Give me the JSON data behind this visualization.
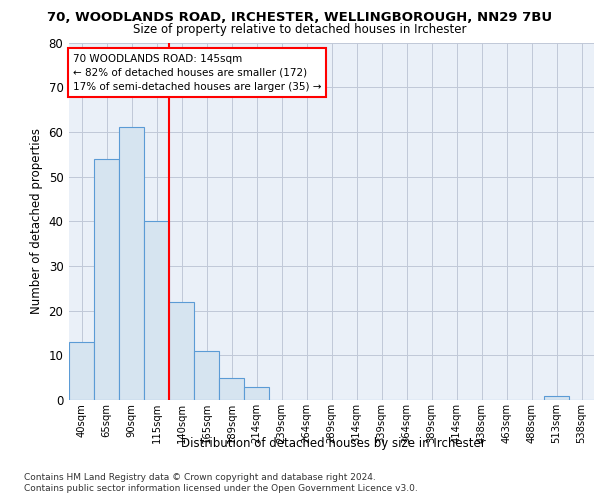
{
  "title1": "70, WOODLANDS ROAD, IRCHESTER, WELLINGBOROUGH, NN29 7BU",
  "title2": "Size of property relative to detached houses in Irchester",
  "xlabel": "Distribution of detached houses by size in Irchester",
  "ylabel": "Number of detached properties",
  "bin_labels": [
    "40sqm",
    "65sqm",
    "90sqm",
    "115sqm",
    "140sqm",
    "165sqm",
    "189sqm",
    "214sqm",
    "239sqm",
    "264sqm",
    "289sqm",
    "314sqm",
    "339sqm",
    "364sqm",
    "389sqm",
    "414sqm",
    "438sqm",
    "463sqm",
    "488sqm",
    "513sqm",
    "538sqm"
  ],
  "bar_values": [
    13,
    54,
    61,
    40,
    22,
    11,
    5,
    3,
    0,
    0,
    0,
    0,
    0,
    0,
    0,
    0,
    0,
    0,
    0,
    1,
    0
  ],
  "bar_color": "#d6e4f0",
  "bar_edge_color": "#5b9bd5",
  "vline_x": 4,
  "annotation_text": "70 WOODLANDS ROAD: 145sqm\n← 82% of detached houses are smaller (172)\n17% of semi-detached houses are larger (35) →",
  "annotation_box_color": "white",
  "annotation_box_edgecolor": "red",
  "vline_color": "red",
  "ylim": [
    0,
    80
  ],
  "yticks": [
    0,
    10,
    20,
    30,
    40,
    50,
    60,
    70,
    80
  ],
  "footer1": "Contains HM Land Registry data © Crown copyright and database right 2024.",
  "footer2": "Contains public sector information licensed under the Open Government Licence v3.0.",
  "plot_bg_color": "#eaf0f8"
}
